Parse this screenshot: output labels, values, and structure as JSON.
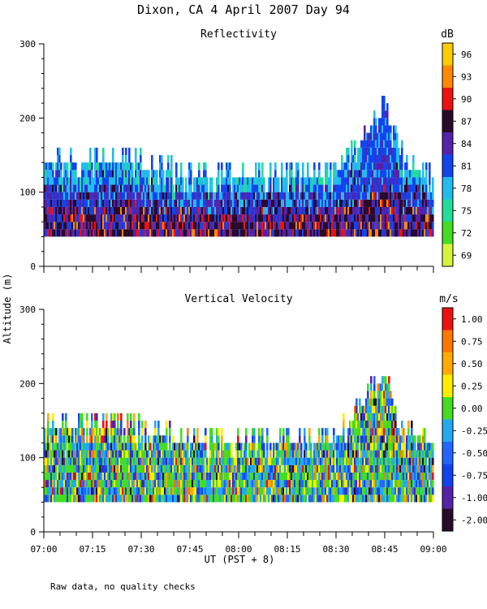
{
  "figure": {
    "title": "Dixon, CA   4 April 2007   Day  94",
    "ylabel": "Altitude (m)",
    "xlabel": "UT  (PST + 8)",
    "note": "Raw data, no quality checks"
  },
  "chart_data": [
    {
      "type": "heatmap",
      "title": "Reflectivity",
      "units": "dB",
      "xlim": [
        0,
        120
      ],
      "ylim": [
        0,
        300
      ],
      "xticks": [
        0,
        15,
        30,
        45,
        60,
        75,
        90,
        105,
        120
      ],
      "xtick_labels": [
        "07:00",
        "07:15",
        "07:30",
        "07:45",
        "08:00",
        "08:15",
        "08:30",
        "08:45",
        "09:00"
      ],
      "yticks": [
        0,
        100,
        200,
        300
      ],
      "ytick_labels": [
        "0",
        "100",
        "200",
        "300"
      ],
      "colorbar": {
        "colors": [
          "#d4f53c",
          "#44dd22",
          "#22dd99",
          "#22bbee",
          "#1144ee",
          "#5522aa",
          "#2a0a2a",
          "#ee1111",
          "#ff8800",
          "#ffcc00"
        ],
        "labels": [
          "69",
          "72",
          "75",
          "78",
          "81",
          "84",
          "87",
          "90",
          "93",
          "96"
        ]
      },
      "echo_base_m": 40,
      "echo_top_profile": {
        "time_min": [
          0,
          10,
          20,
          30,
          40,
          50,
          60,
          70,
          80,
          90,
          95,
          100,
          103,
          105,
          108,
          112,
          120
        ],
        "top_m": [
          140,
          140,
          140,
          135,
          125,
          120,
          120,
          125,
          120,
          125,
          150,
          180,
          200,
          210,
          170,
          130,
          120
        ]
      }
    },
    {
      "type": "heatmap",
      "title": "Vertical Velocity",
      "units": "m/s",
      "xlim": [
        0,
        120
      ],
      "ylim": [
        0,
        300
      ],
      "xticks": [
        0,
        15,
        30,
        45,
        60,
        75,
        90,
        105,
        120
      ],
      "xtick_labels": [
        "07:00",
        "07:15",
        "07:30",
        "07:45",
        "08:00",
        "08:15",
        "08:30",
        "08:45",
        "09:00"
      ],
      "yticks": [
        0,
        100,
        200,
        300
      ],
      "ytick_labels": [
        "0",
        "100",
        "200",
        "300"
      ],
      "colorbar": {
        "colors": [
          "#2a0a2a",
          "#5522aa",
          "#1144ee",
          "#2266ff",
          "#22aaee",
          "#44dd22",
          "#ffee00",
          "#ffaa00",
          "#ff7700",
          "#ee1111"
        ],
        "labels": [
          "-2.00",
          "-1.00",
          "-0.75",
          "-0.50",
          "-0.25",
          "0.00",
          "0.25",
          "0.50",
          "0.75",
          "1.00"
        ]
      },
      "echo_base_m": 40,
      "echo_top_profile": {
        "time_min": [
          0,
          10,
          20,
          30,
          40,
          50,
          60,
          70,
          80,
          90,
          95,
          100,
          103,
          105,
          108,
          112,
          120
        ],
        "top_m": [
          140,
          140,
          140,
          135,
          125,
          120,
          120,
          125,
          120,
          125,
          150,
          180,
          200,
          210,
          170,
          130,
          120
        ]
      }
    }
  ]
}
